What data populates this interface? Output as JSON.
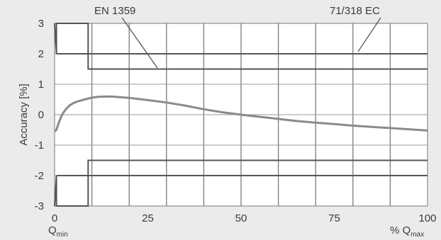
{
  "chart_data": {
    "type": "line",
    "xlabel": "% Q",
    "xlabel_sub": "max",
    "xmin_label": "Q",
    "xmin_label_sub": "min",
    "ylabel": "Accuracy [%]",
    "xlim": [
      0,
      100
    ],
    "ylim": [
      -3,
      3
    ],
    "x_ticks": [
      "0",
      "25",
      "50",
      "75",
      "100"
    ],
    "y_ticks": [
      "3",
      "2",
      "1",
      "0",
      "-1",
      "-2",
      "-3"
    ],
    "grid": true,
    "annotations": [
      "EN 1359",
      "71/318 EC"
    ],
    "series": [
      {
        "x": [
          0,
          0.5,
          1,
          2,
          3,
          4,
          5,
          6,
          8,
          10,
          12,
          15,
          20,
          25,
          30,
          35,
          40,
          45,
          50,
          55,
          60,
          65,
          70,
          75,
          80,
          85,
          90,
          95,
          100
        ],
        "values": [
          -0.55,
          -0.5,
          -0.3,
          0.0,
          0.18,
          0.3,
          0.38,
          0.43,
          0.5,
          0.56,
          0.59,
          0.6,
          0.55,
          0.48,
          0.4,
          0.3,
          0.18,
          0.08,
          0.0,
          -0.07,
          -0.14,
          -0.21,
          -0.26,
          -0.31,
          -0.36,
          -0.4,
          -0.44,
          -0.48,
          -0.52
        ]
      }
    ],
    "limit_bands": [
      {
        "x": [
          0,
          0,
          0.5,
          0.5,
          9,
          9,
          100
        ],
        "upper": [
          3,
          3,
          2,
          3,
          3,
          1.5,
          1.5
        ],
        "lower": [
          -3,
          -3,
          -2,
          -3,
          -3,
          -1.5,
          -1.5
        ]
      },
      {
        "x": [
          0.5,
          9,
          100
        ],
        "upper": [
          2,
          2,
          2
        ],
        "lower": [
          -2,
          -2,
          -2
        ]
      }
    ]
  }
}
